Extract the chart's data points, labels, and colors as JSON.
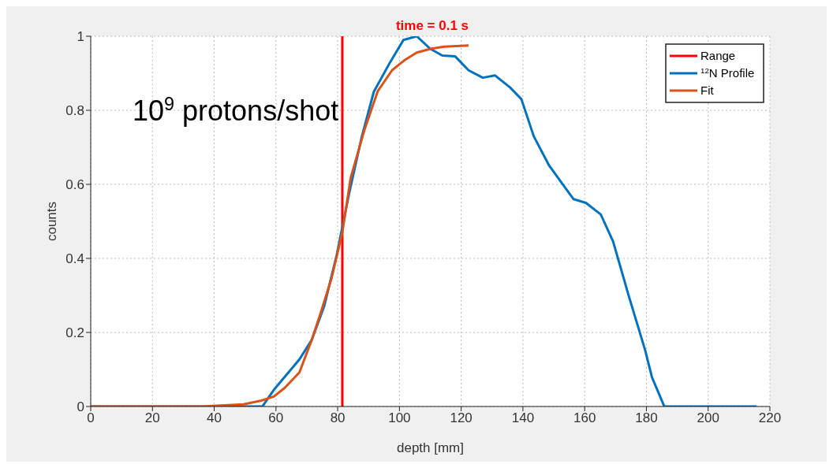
{
  "chart_data": {
    "type": "line",
    "title": "time = 0.1 s",
    "xlabel": "depth [mm]",
    "ylabel": "counts",
    "annotations": [
      "10$^{9}$ protons/shot"
    ],
    "series": [
      {
        "name": "Range",
        "color": "#ff0000",
        "x": [
          81.5,
          81.5
        ],
        "values": [
          0,
          1
        ]
      },
      {
        "name": "$^{12}$N Profile",
        "color": "#0072bd",
        "x": [
          0,
          55.6,
          59.6,
          67.6,
          71.6,
          75.6,
          79.7,
          83.7,
          87.7,
          91.7,
          97,
          101.3,
          105.6,
          110,
          113.9,
          118,
          122.4,
          127,
          131,
          135.8,
          139.5,
          143.5,
          148.4,
          156.4,
          160.4,
          165.2,
          169.2,
          174.3,
          179.6,
          181.8,
          185.8,
          215.7
        ],
        "values": [
          0,
          0,
          0.048,
          0.127,
          0.18,
          0.27,
          0.41,
          0.575,
          0.725,
          0.85,
          0.93,
          0.99,
          1.0,
          0.966,
          0.948,
          0.946,
          0.908,
          0.888,
          0.894,
          0.862,
          0.83,
          0.73,
          0.652,
          0.56,
          0.55,
          0.519,
          0.446,
          0.298,
          0.152,
          0.079,
          0,
          0
        ]
      },
      {
        "name": "Fit",
        "color": "#d95319",
        "x": [
          0,
          36,
          49.5,
          55.3,
          59.3,
          62.8,
          67.6,
          71.6,
          74.3,
          78,
          81.5,
          84.2,
          88.7,
          93,
          97.6,
          101.6,
          105.6,
          110.1,
          114.4,
          122.4
        ],
        "values": [
          0,
          0,
          0.006,
          0.016,
          0.027,
          0.05,
          0.092,
          0.18,
          0.248,
          0.346,
          0.47,
          0.617,
          0.748,
          0.852,
          0.908,
          0.935,
          0.956,
          0.966,
          0.972,
          0.975
        ]
      }
    ],
    "xlim": [
      0,
      220
    ],
    "xticks": [
      0,
      20,
      40,
      60,
      80,
      100,
      120,
      140,
      160,
      180,
      200,
      220
    ],
    "ylim": [
      0,
      1
    ],
    "yticks": [
      0,
      0.2,
      0.4,
      0.6,
      0.8,
      1
    ],
    "grid": true,
    "legend": "top right",
    "marker": "none",
    "line_style": "solid"
  }
}
